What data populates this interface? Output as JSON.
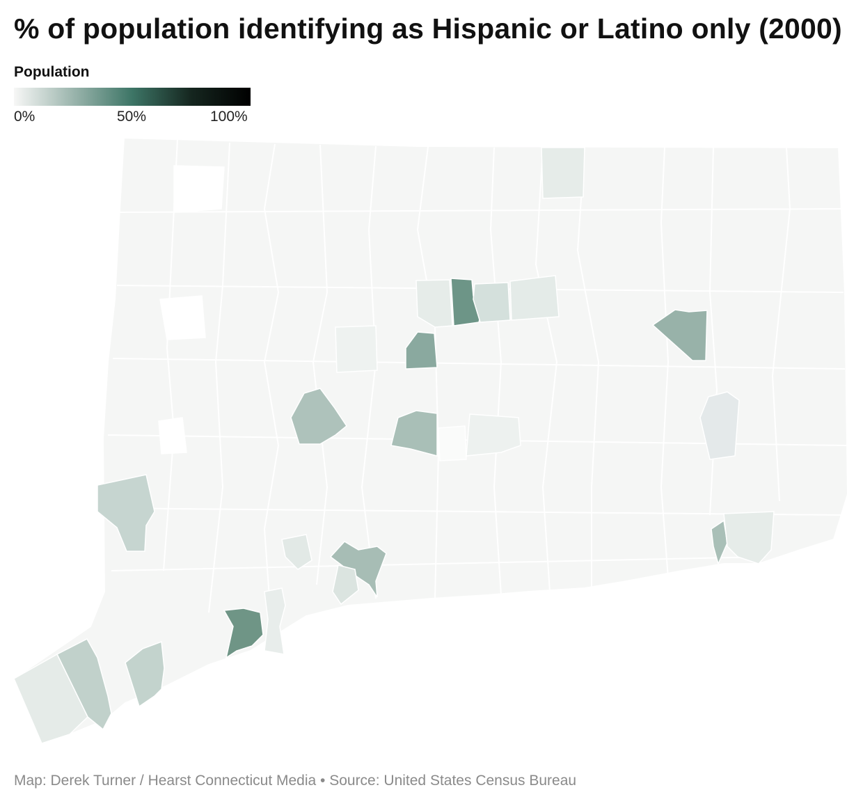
{
  "title": "% of population identifying as Hispanic or Latino only (2000)",
  "legend": {
    "title": "Population",
    "ticks": [
      "0%",
      "50%",
      "100%"
    ],
    "gradient": [
      "#f7f7f6",
      "#9bb5ad",
      "#3d7566",
      "#15261f",
      "#000000"
    ]
  },
  "map": {
    "state": "Connecticut",
    "base_color": "#f5f6f5",
    "border_color": "#ffffff",
    "highlighted_towns": [
      {
        "name": "hartford",
        "share": 0.41
      },
      {
        "name": "east-hartford",
        "share": 0.09
      },
      {
        "name": "new-britain",
        "share": 0.26
      },
      {
        "name": "windham",
        "share": 0.32
      },
      {
        "name": "waterbury",
        "share": 0.22
      },
      {
        "name": "meriden",
        "share": 0.25
      },
      {
        "name": "new-haven",
        "share": 0.21
      },
      {
        "name": "bridgeport",
        "share": 0.32
      },
      {
        "name": "danbury",
        "share": 0.16
      },
      {
        "name": "stamford",
        "share": 0.17
      },
      {
        "name": "norwalk",
        "share": 0.16
      },
      {
        "name": "new-london",
        "share": 0.2
      },
      {
        "name": "norwich",
        "share": 0.06
      },
      {
        "name": "enfield",
        "share": 0.05
      }
    ]
  },
  "footer": "Map: Derek Turner / Hearst Connecticut Media • Source: United States Census Bureau"
}
